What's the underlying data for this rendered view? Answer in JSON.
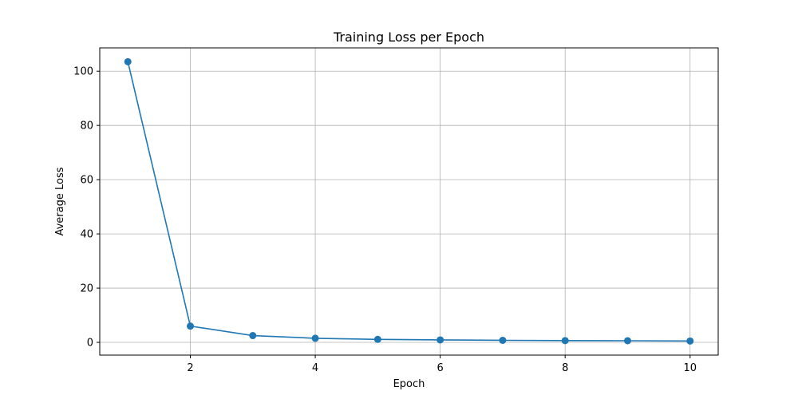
{
  "chart_data": {
    "type": "line",
    "title": "Training Loss per Epoch",
    "xlabel": "Epoch",
    "ylabel": "Average Loss",
    "xlim": [
      0.55,
      10.45
    ],
    "ylim": [
      -4.7,
      108.6
    ],
    "xticks": [
      2,
      4,
      6,
      8,
      10
    ],
    "yticks": [
      0,
      20,
      40,
      60,
      80,
      100
    ],
    "grid": true,
    "series": [
      {
        "color": "#1f77b4",
        "marker": "circle",
        "x": [
          1,
          2,
          3,
          4,
          5,
          6,
          7,
          8,
          9,
          10
        ],
        "y": [
          103.5,
          6.0,
          2.5,
          1.5,
          1.1,
          0.9,
          0.75,
          0.65,
          0.6,
          0.5
        ]
      }
    ]
  }
}
